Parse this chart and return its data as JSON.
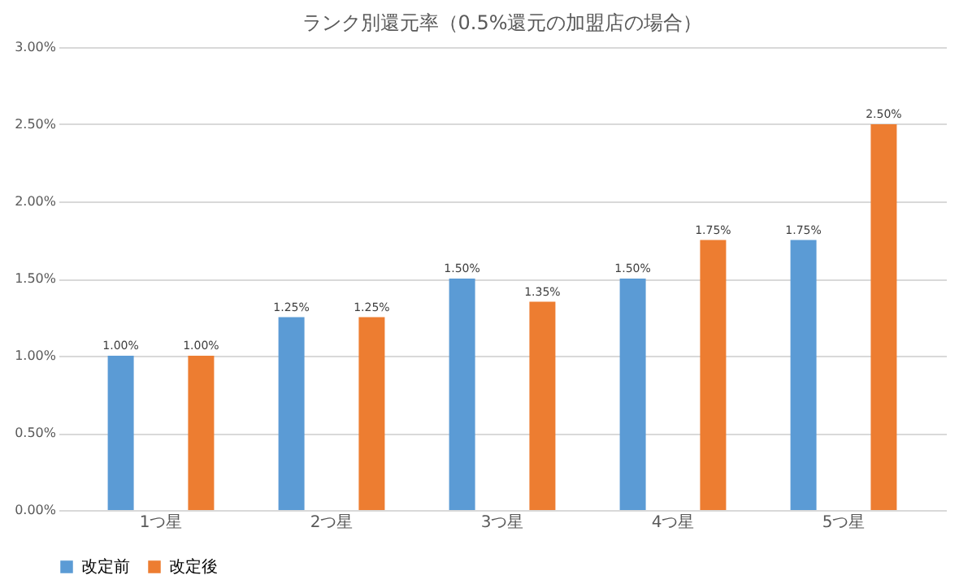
{
  "chart_data": {
    "type": "bar",
    "title": "ランク別還元率（0.5%還元の加盟店の場合）",
    "categories": [
      "1つ星",
      "2つ星",
      "3つ星",
      "4つ星",
      "5つ星"
    ],
    "series": [
      {
        "name": "改定前",
        "color": "#5b9bd5",
        "values": [
          1.0,
          1.25,
          1.5,
          1.5,
          1.75
        ],
        "value_labels": [
          "1.00%",
          "1.25%",
          "1.50%",
          "1.50%",
          "1.75%"
        ]
      },
      {
        "name": "改定後",
        "color": "#ed7d31",
        "values": [
          1.0,
          1.25,
          1.35,
          1.75,
          2.5
        ],
        "value_labels": [
          "1.00%",
          "1.25%",
          "1.35%",
          "1.75%",
          "2.50%"
        ]
      }
    ],
    "ylim": [
      0,
      3
    ],
    "yticks": [
      {
        "value": 0,
        "label": "0.00%"
      },
      {
        "value": 0.5,
        "label": "0.50%"
      },
      {
        "value": 1,
        "label": "1.00%"
      },
      {
        "value": 1.5,
        "label": "1.50%"
      },
      {
        "value": 2,
        "label": "2.00%"
      },
      {
        "value": 2.5,
        "label": "2.50%"
      },
      {
        "value": 3,
        "label": "3.00%"
      }
    ],
    "grid": "y",
    "legend": "bottom"
  }
}
